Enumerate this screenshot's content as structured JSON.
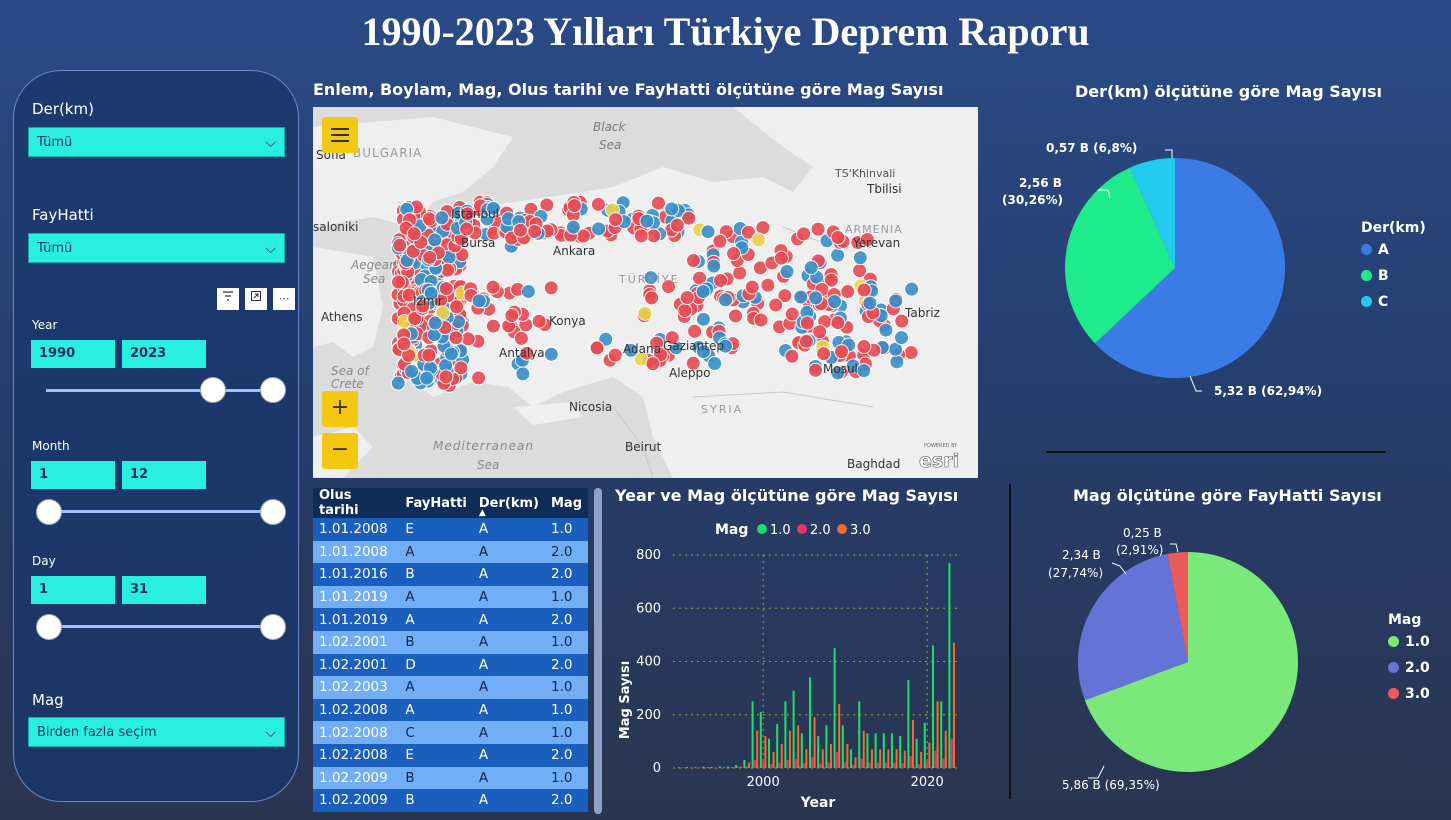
{
  "title": "1990-2023 Yılları Türkiye Deprem Raporu",
  "slicers": {
    "der_label": "Der(km)",
    "der_value": "Tümü",
    "fay_label": "FayHatti",
    "fay_value": "Tümü",
    "year_label": "Year",
    "year_from": "1990",
    "year_to": "2023",
    "year_range_fraction": [
      0.7,
      1.0
    ],
    "month_label": "Month",
    "month_from": "1",
    "month_to": "12",
    "day_label": "Day",
    "day_from": "1",
    "day_to": "31",
    "mag_label": "Mag",
    "mag_value": "Birden fazla seçim",
    "toolbar_icons": [
      "filter-icon",
      "focus-mode-icon",
      "more-options-icon"
    ]
  },
  "map": {
    "title": "Enlem, Boylam, Mag, Olus tarihi ve FayHatti ölçütüne göre Mag Sayısı",
    "places": {
      "black_sea_1": "Black",
      "black_sea_2": "Sea",
      "bulgaria": "BULGARIA",
      "sofia": "Sofia",
      "tskhinvali": "TS'Khinvali",
      "tbilisi": "Tbilisi",
      "istanbul": "Istanbul",
      "bursa": "Bursa",
      "saloniki": "saloniki",
      "ankara": "Ankara",
      "turkiye": "TÜRKİYE",
      "armenia": "ARMENIA",
      "yerevan": "Yerevan",
      "aegean_1": "Aegean",
      "aegean_2": "Sea",
      "izmir": "İzmir",
      "athens": "Athens",
      "konya": "Konya",
      "tabriz": "Tabriz",
      "adana": "Adana",
      "gaziantep": "Gaziantep",
      "antalya": "Antalya",
      "aleppo": "Aleppo",
      "mosul": "Mosul",
      "crete_1": "Sea of",
      "crete_2": "Crete",
      "nicosia": "Nicosia",
      "syria": "SYRIA",
      "med_1": "Mediterranean",
      "med_2": "Sea",
      "beirut": "Beirut",
      "baghdad": "Baghdad",
      "esri_small": "POWERED BY",
      "esri": "esri"
    },
    "menu_icon": "hamburger-icon",
    "zoom_in": "+",
    "zoom_out": "−",
    "colors": {
      "red": "#e84a52",
      "blue": "#3a8fc8",
      "yellow": "#e8d24a"
    }
  },
  "table": {
    "columns": [
      "Olus tarihi",
      "FayHatti",
      "Der(km)",
      "Mag"
    ],
    "sort_indicator": "▲",
    "rows": [
      [
        "1.01.2008",
        "E",
        "A",
        "1.0"
      ],
      [
        "1.01.2008",
        "A",
        "A",
        "2.0"
      ],
      [
        "1.01.2016",
        "B",
        "A",
        "2.0"
      ],
      [
        "1.01.2019",
        "A",
        "A",
        "1.0"
      ],
      [
        "1.01.2019",
        "A",
        "A",
        "2.0"
      ],
      [
        "1.02.2001",
        "B",
        "A",
        "1.0"
      ],
      [
        "1.02.2001",
        "D",
        "A",
        "2.0"
      ],
      [
        "1.02.2003",
        "A",
        "A",
        "1.0"
      ],
      [
        "1.02.2008",
        "A",
        "A",
        "1.0"
      ],
      [
        "1.02.2008",
        "C",
        "A",
        "1.0"
      ],
      [
        "1.02.2008",
        "E",
        "A",
        "2.0"
      ],
      [
        "1.02.2009",
        "B",
        "A",
        "1.0"
      ],
      [
        "1.02.2009",
        "B",
        "A",
        "2.0"
      ]
    ]
  },
  "pie_der": {
    "title": "Der(km) ölçütüne göre Mag Sayısı",
    "legend_title": "Der(km)",
    "labels_text": [
      "5,32 B (62,94%)",
      "2,56 B",
      "(30,26%)",
      "0,57 B (6,8%)"
    ]
  },
  "bar_chart": {
    "title": "Year ve Mag ölçütüne göre Mag Sayısı",
    "legend_title": "Mag",
    "ylabel": "Mag Sayısı",
    "xlabel": "Year"
  },
  "pie_mag": {
    "title": "Mag ölçütüne göre FayHatti Sayısı",
    "legend_title": "Mag",
    "labels_text": [
      "5,86 B (69,35%)",
      "2,34 B",
      "(27,74%)",
      "0,25 B",
      "(2,91%)"
    ]
  },
  "chart_data": [
    {
      "type": "pie",
      "title": "Der(km) ölçütüne göre Mag Sayısı",
      "legend_title": "Der(km)",
      "categories": [
        "A",
        "B",
        "C"
      ],
      "values": [
        5.32,
        2.56,
        0.57
      ],
      "percents": [
        62.94,
        30.26,
        6.8
      ],
      "colors": [
        "#3a7be6",
        "#1eec8a",
        "#22cbee"
      ],
      "legend_position": "right"
    },
    {
      "type": "bar",
      "title": "Year ve Mag ölçütüne göre Mag Sayısı",
      "xlabel": "Year",
      "ylabel": "Mag Sayısı",
      "ylim": [
        0,
        800
      ],
      "yticks": [
        0,
        200,
        400,
        600,
        800
      ],
      "xticks": [
        2000,
        2020
      ],
      "xlim": [
        1989,
        2024
      ],
      "x": [
        1990,
        1991,
        1992,
        1993,
        1994,
        1995,
        1996,
        1997,
        1998,
        1999,
        2000,
        2001,
        2002,
        2003,
        2004,
        2005,
        2006,
        2007,
        2008,
        2009,
        2010,
        2011,
        2012,
        2013,
        2014,
        2015,
        2016,
        2017,
        2018,
        2019,
        2020,
        2021,
        2022,
        2023
      ],
      "grid": true,
      "legend_position": "top",
      "series": [
        {
          "name": "1.0",
          "color": "#1edc6a",
          "values": [
            3,
            4,
            3,
            5,
            4,
            6,
            5,
            12,
            30,
            250,
            210,
            110,
            165,
            250,
            290,
            130,
            340,
            120,
            160,
            450,
            160,
            70,
            250,
            130,
            130,
            130,
            130,
            120,
            330,
            110,
            170,
            460,
            250,
            770
          ]
        },
        {
          "name": "2.0",
          "color": "#e8326e",
          "values": [
            1,
            1,
            1,
            1,
            1,
            2,
            2,
            3,
            6,
            30,
            25,
            15,
            20,
            30,
            35,
            18,
            40,
            16,
            20,
            60,
            22,
            12,
            35,
            20,
            20,
            20,
            20,
            18,
            45,
            15,
            25,
            65,
            35,
            110
          ]
        },
        {
          "name": "3.0",
          "color": "#f06a32",
          "values": [
            2,
            2,
            2,
            3,
            2,
            3,
            3,
            6,
            20,
            140,
            120,
            60,
            90,
            140,
            160,
            70,
            190,
            70,
            90,
            240,
            90,
            40,
            140,
            70,
            70,
            70,
            70,
            65,
            180,
            60,
            95,
            250,
            140,
            470
          ]
        }
      ]
    },
    {
      "type": "pie",
      "title": "Mag ölçütüne göre FayHatti Sayısı",
      "legend_title": "Mag",
      "categories": [
        "1.0",
        "2.0",
        "3.0"
      ],
      "values": [
        5.86,
        2.34,
        0.25
      ],
      "percents": [
        69.35,
        27.74,
        2.91
      ],
      "colors": [
        "#7ae97a",
        "#6673d6",
        "#ee5a5a"
      ],
      "legend_position": "right"
    }
  ]
}
